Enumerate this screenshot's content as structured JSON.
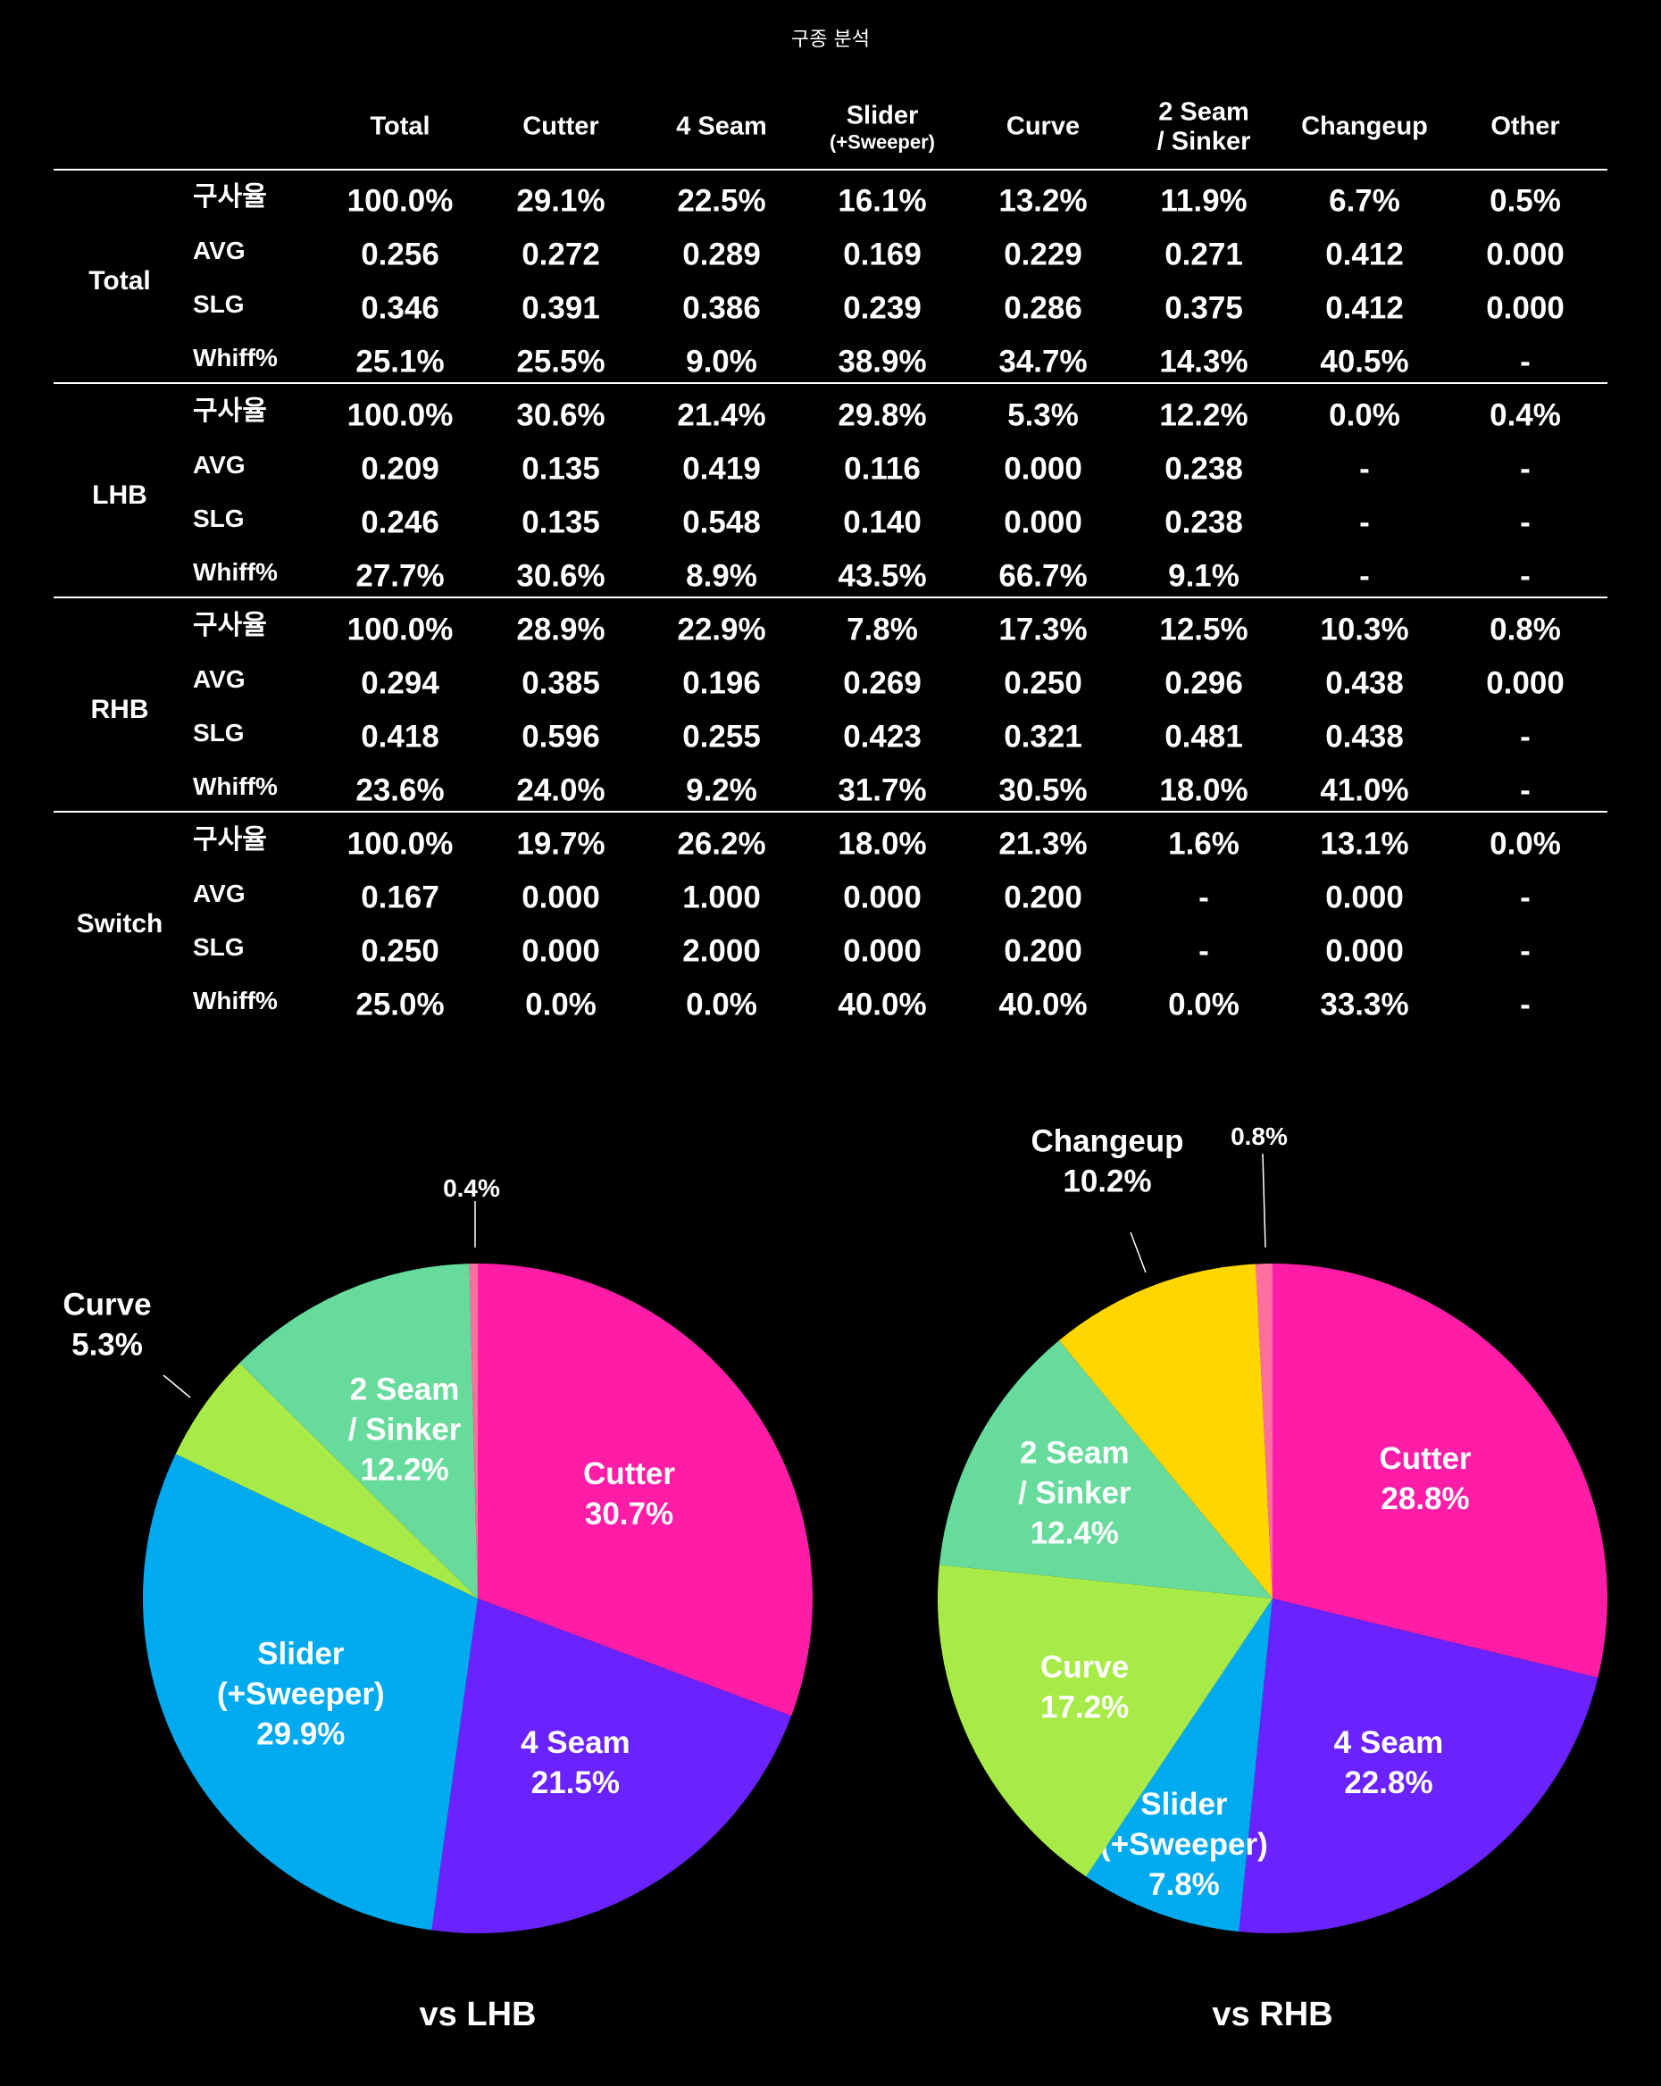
{
  "title": "구종 분석",
  "table": {
    "columns": [
      {
        "label": "Total"
      },
      {
        "label": "Cutter"
      },
      {
        "label": "4 Seam"
      },
      {
        "label": "Slider",
        "sub": "(+Sweeper)"
      },
      {
        "label": "Curve"
      },
      {
        "label": "2 Seam",
        "sub": "/ Sinker"
      },
      {
        "label": "Changeup"
      },
      {
        "label": "Other"
      }
    ],
    "groups": [
      {
        "name": "Total",
        "rows": [
          {
            "metric": "구사율",
            "values": [
              "100.0%",
              "29.1%",
              "22.5%",
              "16.1%",
              "13.2%",
              "11.9%",
              "6.7%",
              "0.5%"
            ]
          },
          {
            "metric": "AVG",
            "values": [
              "0.256",
              "0.272",
              "0.289",
              "0.169",
              "0.229",
              "0.271",
              "0.412",
              "0.000"
            ]
          },
          {
            "metric": "SLG",
            "values": [
              "0.346",
              "0.391",
              "0.386",
              "0.239",
              "0.286",
              "0.375",
              "0.412",
              "0.000"
            ]
          },
          {
            "metric": "Whiff%",
            "values": [
              "25.1%",
              "25.5%",
              "9.0%",
              "38.9%",
              "34.7%",
              "14.3%",
              "40.5%",
              "-"
            ]
          }
        ]
      },
      {
        "name": "LHB",
        "rows": [
          {
            "metric": "구사율",
            "values": [
              "100.0%",
              "30.6%",
              "21.4%",
              "29.8%",
              "5.3%",
              "12.2%",
              "0.0%",
              "0.4%"
            ]
          },
          {
            "metric": "AVG",
            "values": [
              "0.209",
              "0.135",
              "0.419",
              "0.116",
              "0.000",
              "0.238",
              "-",
              "-"
            ]
          },
          {
            "metric": "SLG",
            "values": [
              "0.246",
              "0.135",
              "0.548",
              "0.140",
              "0.000",
              "0.238",
              "-",
              "-"
            ]
          },
          {
            "metric": "Whiff%",
            "values": [
              "27.7%",
              "30.6%",
              "8.9%",
              "43.5%",
              "66.7%",
              "9.1%",
              "-",
              "-"
            ]
          }
        ]
      },
      {
        "name": "RHB",
        "rows": [
          {
            "metric": "구사율",
            "values": [
              "100.0%",
              "28.9%",
              "22.9%",
              "7.8%",
              "17.3%",
              "12.5%",
              "10.3%",
              "0.8%"
            ]
          },
          {
            "metric": "AVG",
            "values": [
              "0.294",
              "0.385",
              "0.196",
              "0.269",
              "0.250",
              "0.296",
              "0.438",
              "0.000"
            ]
          },
          {
            "metric": "SLG",
            "values": [
              "0.418",
              "0.596",
              "0.255",
              "0.423",
              "0.321",
              "0.481",
              "0.438",
              "-"
            ]
          },
          {
            "metric": "Whiff%",
            "values": [
              "23.6%",
              "24.0%",
              "9.2%",
              "31.7%",
              "30.5%",
              "18.0%",
              "41.0%",
              "-"
            ]
          }
        ]
      },
      {
        "name": "Switch",
        "rows": [
          {
            "metric": "구사율",
            "values": [
              "100.0%",
              "19.7%",
              "26.2%",
              "18.0%",
              "21.3%",
              "1.6%",
              "13.1%",
              "0.0%"
            ]
          },
          {
            "metric": "AVG",
            "values": [
              "0.167",
              "0.000",
              "1.000",
              "0.000",
              "0.200",
              "-",
              "0.000",
              "-"
            ]
          },
          {
            "metric": "SLG",
            "values": [
              "0.250",
              "0.000",
              "2.000",
              "0.000",
              "0.200",
              "-",
              "0.000",
              "-"
            ]
          },
          {
            "metric": "Whiff%",
            "values": [
              "25.0%",
              "0.0%",
              "0.0%",
              "40.0%",
              "40.0%",
              "0.0%",
              "33.3%",
              "-"
            ]
          }
        ]
      }
    ]
  },
  "colors": {
    "Cutter": "#ff1ca6",
    "4 Seam": "#6a22ff",
    "Slider": "#00aaee",
    "Curve": "#a8eb48",
    "2 Seam": "#66db9c",
    "Changeup": "#ffd600",
    "Other": "#ff6f9e",
    "background": "#000000",
    "text": "#ffffff"
  },
  "chart_data": [
    {
      "type": "pie",
      "title": "vs LHB",
      "slices": [
        {
          "key": "Cutter",
          "label_lines": [
            "Cutter",
            "30.7%"
          ],
          "value": 30.7
        },
        {
          "key": "4 Seam",
          "label_lines": [
            "4 Seam",
            "21.5%"
          ],
          "value": 21.5
        },
        {
          "key": "Slider",
          "label_lines": [
            "Slider",
            "(+Sweeper)",
            "29.9%"
          ],
          "value": 29.9
        },
        {
          "key": "Curve",
          "label_lines": [
            "Curve",
            "5.3%"
          ],
          "value": 5.3
        },
        {
          "key": "2 Seam",
          "label_lines": [
            "2 Seam",
            "/ Sinker",
            "12.2%"
          ],
          "value": 12.2
        },
        {
          "key": "Other",
          "label_lines": [
            "0.4%"
          ],
          "value": 0.4
        }
      ]
    },
    {
      "type": "pie",
      "title": "vs RHB",
      "slices": [
        {
          "key": "Cutter",
          "label_lines": [
            "Cutter",
            "28.8%"
          ],
          "value": 28.8
        },
        {
          "key": "4 Seam",
          "label_lines": [
            "4 Seam",
            "22.8%"
          ],
          "value": 22.8
        },
        {
          "key": "Slider",
          "label_lines": [
            "Slider",
            "(+Sweeper)",
            "7.8%"
          ],
          "value": 7.8
        },
        {
          "key": "Curve",
          "label_lines": [
            "Curve",
            "17.2%"
          ],
          "value": 17.2
        },
        {
          "key": "2 Seam",
          "label_lines": [
            "2 Seam",
            "/ Sinker",
            "12.4%"
          ],
          "value": 12.4
        },
        {
          "key": "Changeup",
          "label_lines": [
            "Changeup",
            "10.2%"
          ],
          "value": 10.2
        },
        {
          "key": "Other",
          "label_lines": [
            "0.8%"
          ],
          "value": 0.8
        }
      ]
    }
  ]
}
